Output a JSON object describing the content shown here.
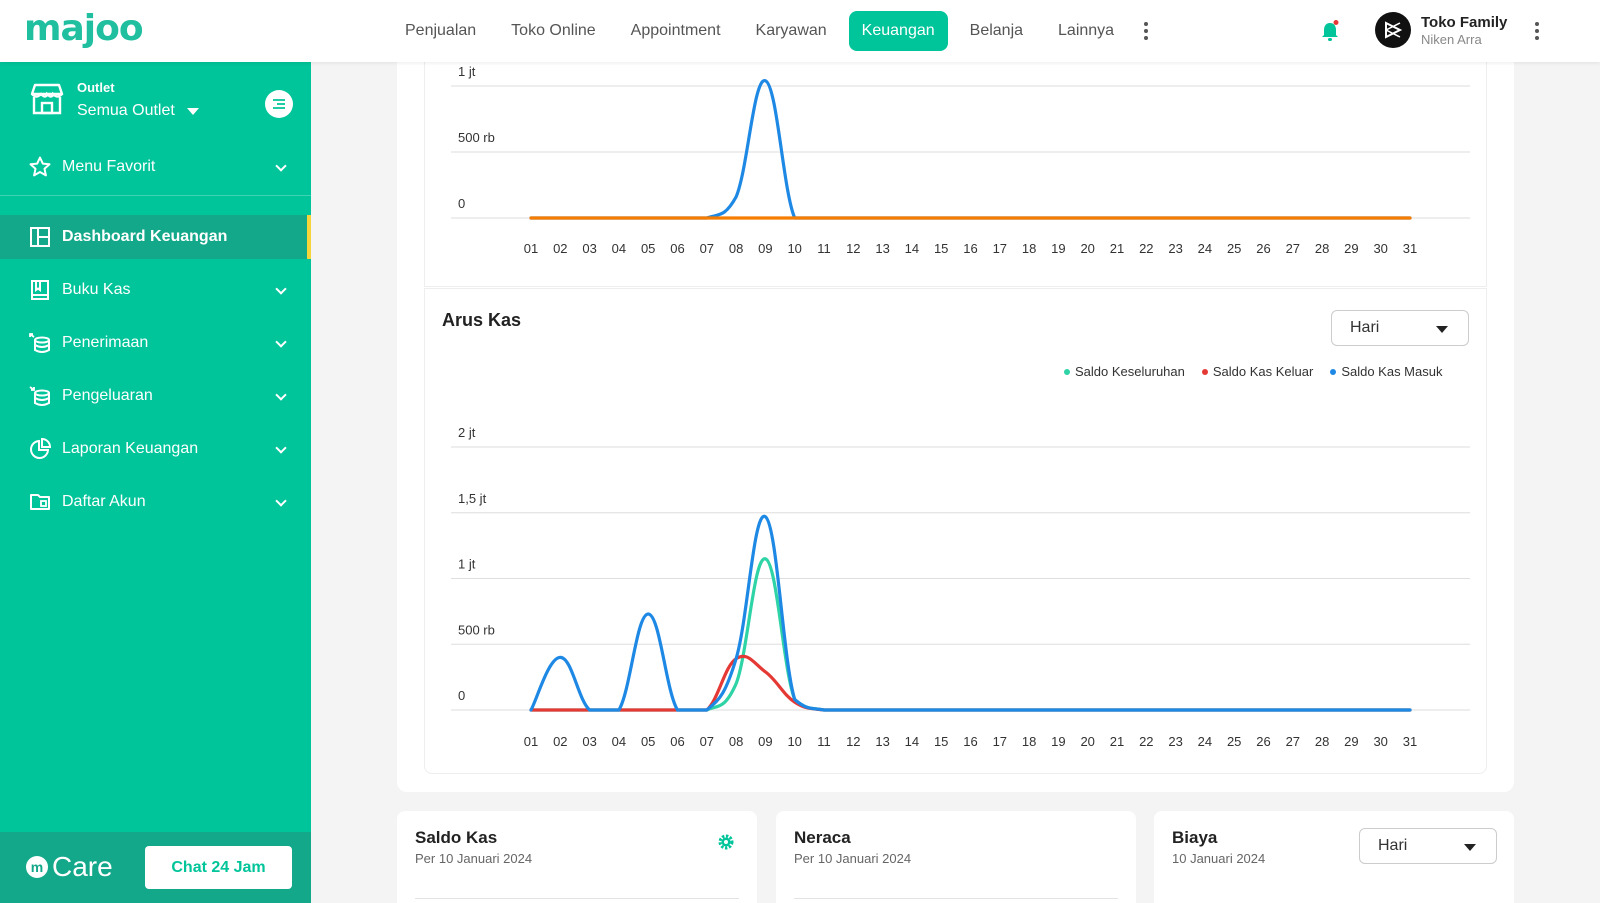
{
  "header": {
    "logo": "majoo",
    "nav": [
      "Penjualan",
      "Toko Online",
      "Appointment",
      "Karyawan",
      "Keuangan",
      "Belanja",
      "Lainnya"
    ],
    "active_nav": "Keuangan",
    "profile": {
      "name": "Toko Family",
      "sub": "Niken Arra"
    },
    "colors": {
      "accent": "#00c49a",
      "notification_dot": "#e53935"
    }
  },
  "sidebar": {
    "outlet_label": "Outlet",
    "outlet_value": "Semua Outlet",
    "items": [
      {
        "label": "Menu Favorit",
        "icon": "star-icon"
      },
      {
        "label": "Dashboard Keuangan",
        "icon": "dashboard-icon"
      },
      {
        "label": "Buku Kas",
        "icon": "book-icon"
      },
      {
        "label": "Penerimaan",
        "icon": "coins-in-icon"
      },
      {
        "label": "Pengeluaran",
        "icon": "coins-out-icon"
      },
      {
        "label": "Laporan Keuangan",
        "icon": "pie-chart-icon"
      },
      {
        "label": "Daftar Akun",
        "icon": "folder-icon"
      }
    ],
    "active_item": "Dashboard Keuangan",
    "care_label": "Care",
    "chat_button": "Chat 24 Jam"
  },
  "chart_data": [
    {
      "type": "line",
      "title": "",
      "x": [
        "01",
        "02",
        "03",
        "04",
        "05",
        "06",
        "07",
        "08",
        "09",
        "10",
        "11",
        "12",
        "13",
        "14",
        "15",
        "16",
        "17",
        "18",
        "19",
        "20",
        "21",
        "22",
        "23",
        "24",
        "25",
        "26",
        "27",
        "28",
        "29",
        "30",
        "31"
      ],
      "yticks": [
        "0",
        "500 rb",
        "1 jt"
      ],
      "ylim": [
        0,
        1000000
      ],
      "series": [
        {
          "color": "#1e88e5",
          "values": [
            0,
            0,
            0,
            0,
            0,
            0,
            0,
            160000,
            1040000,
            0,
            0,
            0,
            0,
            0,
            0,
            0,
            0,
            0,
            0,
            0,
            0,
            0,
            0,
            0,
            0,
            0,
            0,
            0,
            0,
            0,
            0
          ]
        },
        {
          "color": "#f57c00",
          "values": [
            0,
            0,
            0,
            0,
            0,
            0,
            0,
            0,
            0,
            0,
            0,
            0,
            0,
            0,
            0,
            0,
            0,
            0,
            0,
            0,
            0,
            0,
            0,
            0,
            0,
            0,
            0,
            0,
            0,
            0,
            0
          ]
        }
      ]
    },
    {
      "type": "line",
      "title": "Arus Kas",
      "period": "Hari",
      "x": [
        "01",
        "02",
        "03",
        "04",
        "05",
        "06",
        "07",
        "08",
        "09",
        "10",
        "11",
        "12",
        "13",
        "14",
        "15",
        "16",
        "17",
        "18",
        "19",
        "20",
        "21",
        "22",
        "23",
        "24",
        "25",
        "26",
        "27",
        "28",
        "29",
        "30",
        "31"
      ],
      "yticks": [
        "0",
        "500 rb",
        "1 jt",
        "1,5 jt",
        "2 jt"
      ],
      "ylim": [
        0,
        2000000
      ],
      "legend": "top-right",
      "series": [
        {
          "name": "Saldo Keseluruhan",
          "color": "#2ed3a6",
          "values": [
            0,
            0,
            0,
            0,
            0,
            0,
            0,
            200000,
            1150000,
            80000,
            0,
            0,
            0,
            0,
            0,
            0,
            0,
            0,
            0,
            0,
            0,
            0,
            0,
            0,
            0,
            0,
            0,
            0,
            0,
            0,
            0
          ]
        },
        {
          "name": "Saldo Kas Keluar",
          "color": "#e53935",
          "values": [
            0,
            0,
            0,
            0,
            0,
            0,
            0,
            390000,
            290000,
            60000,
            0,
            0,
            0,
            0,
            0,
            0,
            0,
            0,
            0,
            0,
            0,
            0,
            0,
            0,
            0,
            0,
            0,
            0,
            0,
            0,
            0
          ]
        },
        {
          "name": "Saldo Kas Masuk",
          "color": "#1e88e5",
          "values": [
            0,
            400000,
            0,
            0,
            730000,
            0,
            0,
            390000,
            1470000,
            80000,
            0,
            0,
            0,
            0,
            0,
            0,
            0,
            0,
            0,
            0,
            0,
            0,
            0,
            0,
            0,
            0,
            0,
            0,
            0,
            0,
            0
          ]
        }
      ]
    }
  ],
  "cards": [
    {
      "title": "Saldo Kas",
      "sub": "Per 10 Januari 2024"
    },
    {
      "title": "Neraca",
      "sub": "Per 10 Januari 2024"
    },
    {
      "title": "Biaya",
      "sub": "10 Januari 2024",
      "period": "Hari"
    }
  ]
}
